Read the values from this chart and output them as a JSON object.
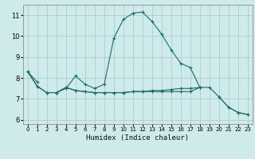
{
  "xlabel": "Humidex (Indice chaleur)",
  "background_color": "#ceeaea",
  "grid_color": "#aacece",
  "line_color": "#1a6b6b",
  "xlim": [
    -0.5,
    23.5
  ],
  "ylim": [
    5.8,
    11.5
  ],
  "yticks": [
    6,
    7,
    8,
    9,
    10,
    11
  ],
  "xticks": [
    0,
    1,
    2,
    3,
    4,
    5,
    6,
    7,
    8,
    9,
    10,
    11,
    12,
    13,
    14,
    15,
    16,
    17,
    18,
    19,
    20,
    21,
    22,
    23
  ],
  "x": [
    0,
    1,
    2,
    3,
    4,
    5,
    6,
    7,
    8,
    9,
    10,
    11,
    12,
    13,
    14,
    15,
    16,
    17,
    18,
    19,
    20,
    21,
    22,
    23
  ],
  "curve1": [
    8.3,
    7.8,
    null,
    7.3,
    7.5,
    8.1,
    7.7,
    7.5,
    7.7,
    9.9,
    10.8,
    11.1,
    11.15,
    10.7,
    10.1,
    9.35,
    8.7,
    8.5,
    7.55,
    null,
    7.1,
    6.6,
    6.35,
    6.25
  ],
  "curve2": [
    8.3,
    7.6,
    7.3,
    7.3,
    7.55,
    7.4,
    7.35,
    7.3,
    7.3,
    7.3,
    7.3,
    7.35,
    7.35,
    7.4,
    7.4,
    7.45,
    7.5,
    7.5,
    7.55,
    7.55,
    7.1,
    6.6,
    6.35,
    6.25
  ],
  "curve3": [
    8.3,
    7.6,
    7.3,
    7.3,
    7.55,
    7.4,
    7.35,
    7.3,
    7.3,
    7.3,
    7.3,
    7.35,
    7.35,
    7.35,
    7.35,
    7.35,
    7.35,
    7.35,
    7.55,
    null,
    null,
    null,
    null,
    null
  ]
}
